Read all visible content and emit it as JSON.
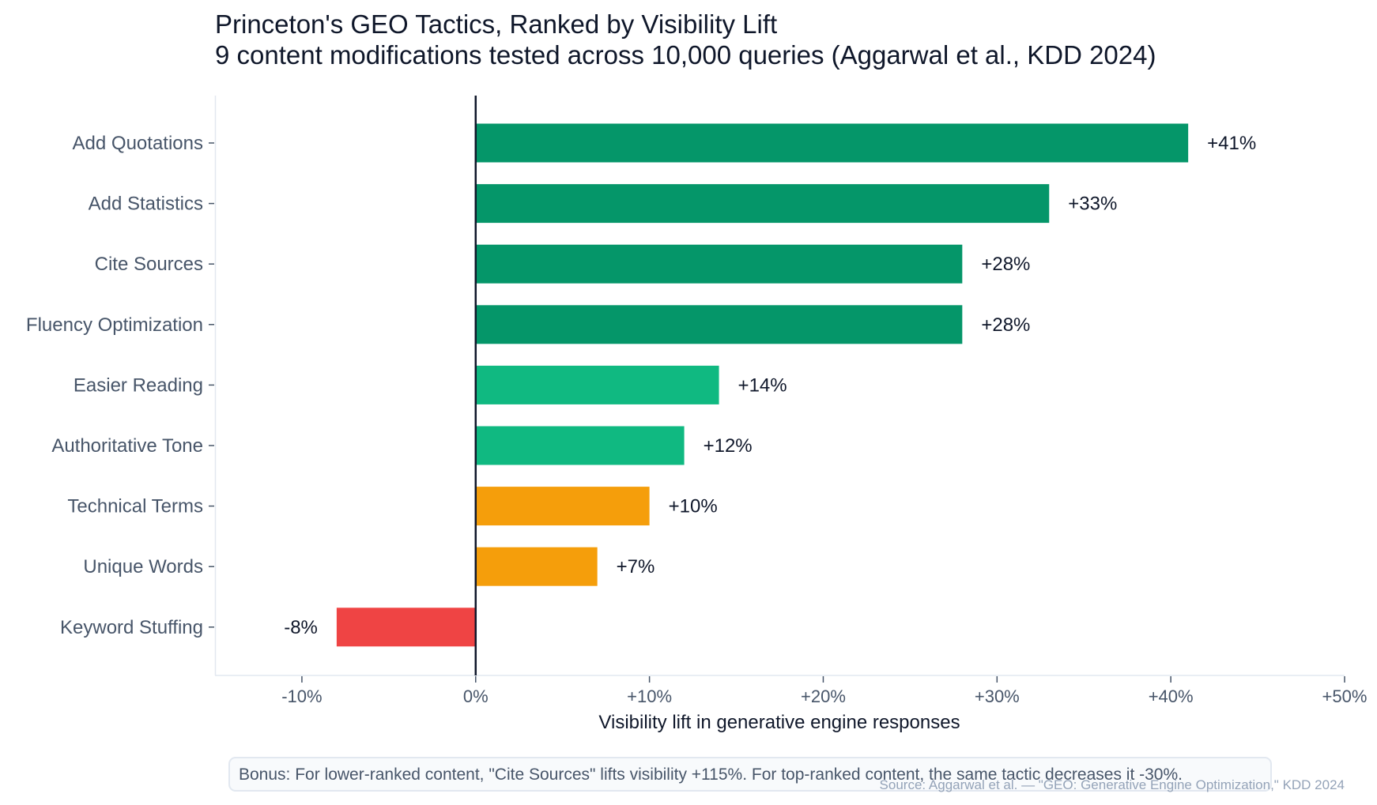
{
  "chart_data": {
    "type": "bar",
    "orientation": "horizontal",
    "title": "Princeton's GEO Tactics, Ranked by Visibility Lift",
    "subtitle": "9 content modifications tested across 10,000 queries (Aggarwal et al., KDD 2024)",
    "xlabel": "Visibility lift in generative engine responses",
    "ylabel": "",
    "xlim": [
      -15,
      50
    ],
    "xticks": [
      -10,
      0,
      10,
      20,
      30,
      40,
      50
    ],
    "xtick_labels": [
      "-10%",
      "0%",
      "+10%",
      "+20%",
      "+30%",
      "+40%",
      "+50%"
    ],
    "grid": false,
    "categories": [
      "Add Quotations",
      "Add Statistics",
      "Cite Sources",
      "Fluency Optimization",
      "Easier Reading",
      "Authoritative Tone",
      "Technical Terms",
      "Unique Words",
      "Keyword Stuffing"
    ],
    "values": [
      41,
      33,
      28,
      28,
      14,
      12,
      10,
      7,
      -8
    ],
    "data_labels": [
      "+41%",
      "+33%",
      "+28%",
      "+28%",
      "+14%",
      "+12%",
      "+10%",
      "+7%",
      "-8%"
    ],
    "bar_colors": [
      "#059669",
      "#059669",
      "#059669",
      "#059669",
      "#10b981",
      "#10b981",
      "#f59e0b",
      "#f59e0b",
      "#ef4444"
    ],
    "annotation": "Bonus: For lower-ranked content, \"Cite Sources\" lifts visibility +115%. For top-ranked content, the same tactic decreases it -30%.",
    "source": "Source: Aggarwal et al. — \"GEO: Generative Engine Optimization,\" KDD 2024"
  }
}
